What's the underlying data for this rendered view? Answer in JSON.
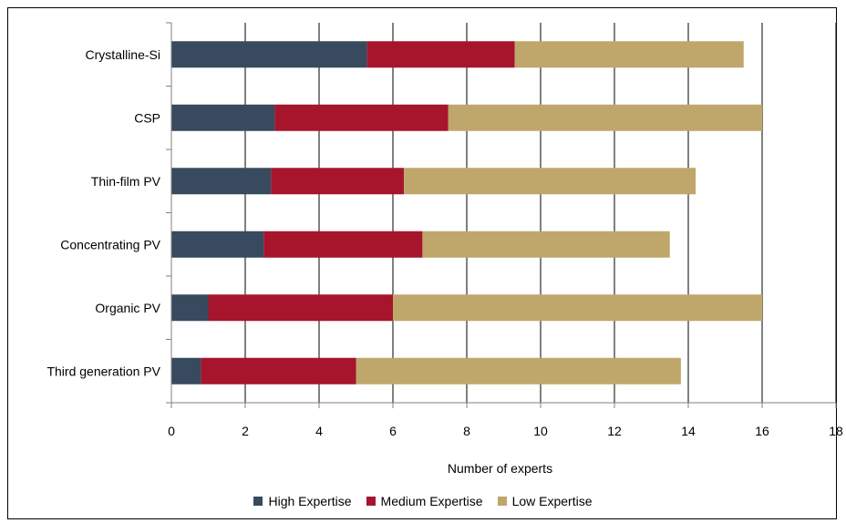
{
  "chart_data": {
    "type": "bar",
    "orientation": "horizontal",
    "stacked": true,
    "categories": [
      "Crystalline-Si",
      "CSP",
      "Thin-film PV",
      "Concentrating PV",
      "Organic PV",
      "Third generation PV"
    ],
    "series": [
      {
        "name": "High Expertise",
        "color": "#374A5E",
        "values": [
          5.3,
          2.8,
          2.7,
          2.5,
          1.0,
          0.8
        ]
      },
      {
        "name": "Medium Expertise",
        "color": "#A6152C",
        "values": [
          4.0,
          4.7,
          3.6,
          4.3,
          5.0,
          4.2
        ]
      },
      {
        "name": "Low Expertise",
        "color": "#BFA76C",
        "values": [
          6.2,
          8.5,
          7.9,
          6.7,
          10.0,
          8.8
        ]
      }
    ],
    "xlim": [
      0,
      18
    ],
    "xticks": [
      "0",
      "2",
      "4",
      "6",
      "8",
      "10",
      "12",
      "14",
      "16",
      "18"
    ],
    "xlabel": "Number of experts",
    "ylabel": "",
    "title": "",
    "grid": "vertical",
    "legend_position": "bottom"
  }
}
